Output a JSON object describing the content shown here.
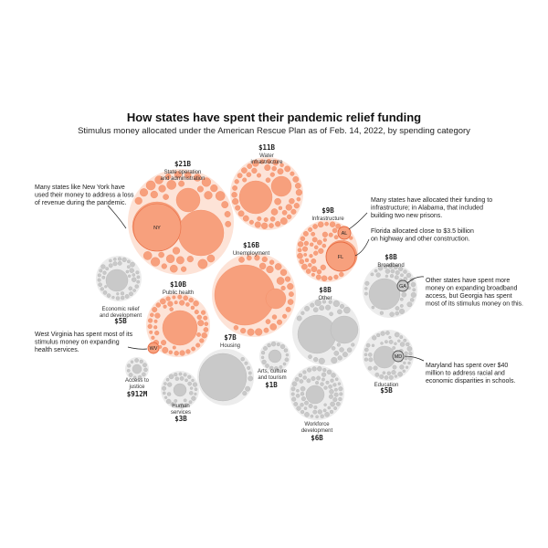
{
  "title": "How states have spent their pandemic relief funding",
  "subtitle": "Stimulus money allocated under the American Rescue Plan as of Feb. 14, 2022, by spending category",
  "colors": {
    "highlight_fill": "#f7a07d",
    "highlight_bg": "#fde3d7",
    "highlight_stroke": "#e86c43",
    "muted_fill": "#c9c9c9",
    "muted_bg": "#ececec",
    "muted_stroke": "#9a9a9a"
  },
  "chart_data": {
    "type": "bubble-cluster",
    "title": "How states have spent their pandemic relief funding",
    "subtitle": "Stimulus money allocated under the American Rescue Plan as of Feb. 14, 2022, by spending category",
    "categories": [
      {
        "name": "State operation and administration",
        "amount_label": "$21B",
        "amount_billions": 21,
        "highlight": true
      },
      {
        "name": "Water infrastructure",
        "amount_label": "$11B",
        "amount_billions": 11,
        "highlight": true
      },
      {
        "name": "Infrastructure",
        "amount_label": "$9B",
        "amount_billions": 9,
        "highlight": true
      },
      {
        "name": "Unemployment",
        "amount_label": "$16B",
        "amount_billions": 16,
        "highlight": true
      },
      {
        "name": "Public health",
        "amount_label": "$10B",
        "amount_billions": 10,
        "highlight": true
      },
      {
        "name": "Broadband",
        "amount_label": "$8B",
        "amount_billions": 8,
        "highlight": false
      },
      {
        "name": "Other",
        "amount_label": "$8B",
        "amount_billions": 8,
        "highlight": false
      },
      {
        "name": "Economic relief and development",
        "amount_label": "$5B",
        "amount_billions": 5,
        "highlight": false
      },
      {
        "name": "Housing",
        "amount_label": "$7B",
        "amount_billions": 7,
        "highlight": false
      },
      {
        "name": "Arts, culture and tourism",
        "amount_label": "$1B",
        "amount_billions": 1,
        "highlight": false
      },
      {
        "name": "Education",
        "amount_label": "$5B",
        "amount_billions": 5,
        "highlight": false
      },
      {
        "name": "Access to justice",
        "amount_label": "$912M",
        "amount_billions": 0.912,
        "highlight": false
      },
      {
        "name": "Human services",
        "amount_label": "$3B",
        "amount_billions": 3,
        "highlight": false
      },
      {
        "name": "Workforce development",
        "amount_label": "$6B",
        "amount_billions": 6,
        "highlight": false
      }
    ],
    "state_markers": [
      {
        "state": "NY",
        "category": "State operation and administration"
      },
      {
        "state": "AL",
        "category": "Infrastructure"
      },
      {
        "state": "FL",
        "category": "Infrastructure"
      },
      {
        "state": "GA",
        "category": "Broadband"
      },
      {
        "state": "WV",
        "category": "Public health"
      },
      {
        "state": "MD",
        "category": "Education"
      }
    ],
    "annotations": [
      {
        "state": "NY",
        "lines": [
          "Many states like New York have",
          "used their money to address a loss",
          "of revenue during the pandemic."
        ]
      },
      {
        "state": "AL",
        "lines": [
          "Many states have allocated their funding to",
          "infrastructure; in Alabama, that included",
          "building two new prisons."
        ]
      },
      {
        "state": "FL",
        "lines": [
          "Florida allocated close to $3.5 billion",
          "on highway and other construction."
        ]
      },
      {
        "state": "GA",
        "lines": [
          "Other states have spent more",
          "money on expanding broadband",
          "access, but Georgia has spent",
          "most of its stimulus money on this."
        ]
      },
      {
        "state": "WV",
        "lines": [
          "West Virginia has spent most of its",
          "stimulus money on expanding",
          "health services."
        ]
      },
      {
        "state": "MD",
        "lines": [
          "Maryland has spent over $40",
          "million to address racial and",
          "economic disparities in schools."
        ]
      }
    ]
  }
}
